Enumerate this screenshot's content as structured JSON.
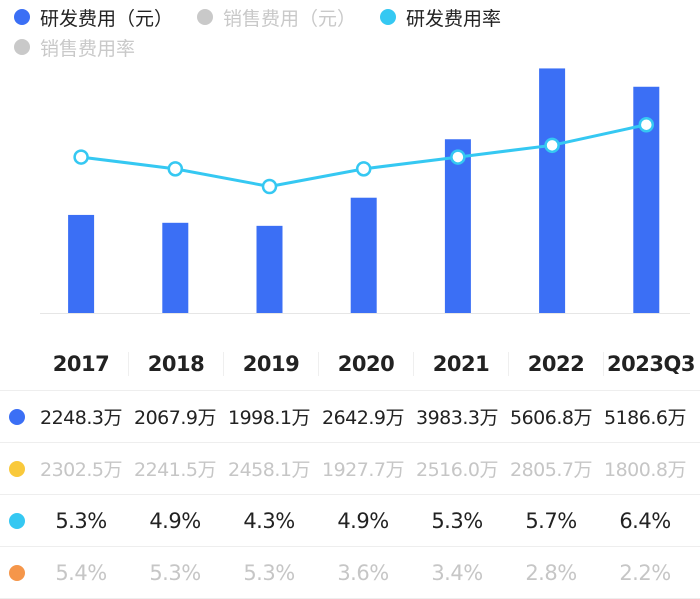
{
  "legend": [
    {
      "label": "研发费用（元）",
      "color": "#3b6ff5",
      "active": true
    },
    {
      "label": "销售费用（元）",
      "color": "#c9c9c9",
      "active": false
    },
    {
      "label": "研发费用率",
      "color": "#35c8f2",
      "active": true
    },
    {
      "label": "销售费用率",
      "color": "#c9c9c9",
      "active": false
    }
  ],
  "chart_data": {
    "type": "bar",
    "categories": [
      "2017",
      "2018",
      "2019",
      "2020",
      "2021",
      "2022",
      "2023Q3"
    ],
    "series": [
      {
        "name": "研发费用（元）",
        "kind": "bar",
        "color": "#3b6ff5",
        "unit": "万",
        "values": [
          2248.3,
          2067.9,
          1998.1,
          2642.9,
          3983.3,
          5606.8,
          5186.6
        ]
      },
      {
        "name": "研发费用率",
        "kind": "line",
        "color": "#35c8f2",
        "unit": "%",
        "values": [
          5.3,
          4.9,
          4.3,
          4.9,
          5.3,
          5.7,
          6.4
        ]
      }
    ],
    "hidden_series": [
      {
        "name": "销售费用（元）",
        "unit": "万",
        "values": [
          2302.5,
          2241.5,
          2458.1,
          1927.7,
          2516.0,
          2805.7,
          1800.8
        ]
      },
      {
        "name": "销售费用率",
        "unit": "%",
        "values": [
          5.4,
          5.3,
          5.3,
          3.6,
          3.4,
          2.8,
          2.2
        ]
      }
    ],
    "bar_ylim": [
      0,
      5800
    ],
    "line_ylim": [
      0,
      8.6
    ]
  },
  "table": {
    "columns": [
      "2017",
      "2018",
      "2019",
      "2020",
      "2021",
      "2022",
      "2023Q3"
    ],
    "rows": [
      {
        "color": "#3b6ff5",
        "style": "strong",
        "cells": [
          "2248.3万",
          "2067.9万",
          "1998.1万",
          "2642.9万",
          "3983.3万",
          "5606.8万",
          "5186.6万"
        ]
      },
      {
        "color": "#f9c93b",
        "style": "dim",
        "cells": [
          "2302.5万",
          "2241.5万",
          "2458.1万",
          "1927.7万",
          "2516.0万",
          "2805.7万",
          "1800.8万"
        ]
      },
      {
        "color": "#35c8f2",
        "style": "strong big",
        "cells": [
          "5.3%",
          "4.9%",
          "4.3%",
          "4.9%",
          "5.3%",
          "5.7%",
          "6.4%"
        ]
      },
      {
        "color": "#f5964a",
        "style": "dim big",
        "cells": [
          "5.4%",
          "5.3%",
          "5.3%",
          "3.6%",
          "3.4%",
          "2.8%",
          "2.2%"
        ]
      }
    ]
  }
}
